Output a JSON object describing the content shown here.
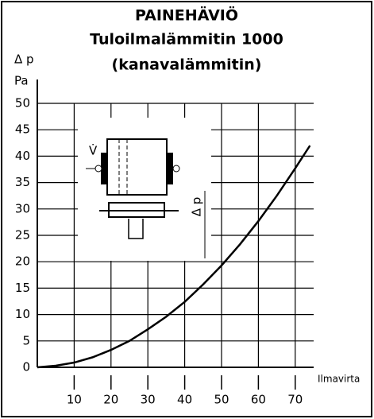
{
  "chart_data": {
    "type": "line",
    "title": "PAINEHÄVIÖ",
    "subtitle": "Tuloilmalämmitin 1000",
    "subtitle2": "(kanavalämmitin)",
    "y_label": "Δ p",
    "y_unit": "Pa",
    "x_label": "Ilmavirta",
    "diagram_labels": [
      "V̇",
      "Δ p"
    ],
    "x": [
      0,
      5,
      10,
      15,
      20,
      25,
      30,
      35,
      40,
      45,
      50,
      55,
      60,
      65,
      70,
      74
    ],
    "series": [
      {
        "name": "Δ p",
        "color": "#000000",
        "values": [
          0,
          0.3,
          0.9,
          1.9,
          3.3,
          5.0,
          7.2,
          9.6,
          12.4,
          15.7,
          19.3,
          23.3,
          27.7,
          32.5,
          37.7,
          42
        ]
      }
    ],
    "xlim": [
      0,
      75
    ],
    "ylim": [
      0,
      50
    ],
    "xticks": [
      10,
      20,
      30,
      40,
      50,
      60,
      70
    ],
    "yticks": [
      0,
      5,
      10,
      15,
      20,
      25,
      30,
      35,
      40,
      45,
      50
    ],
    "grid": true
  }
}
